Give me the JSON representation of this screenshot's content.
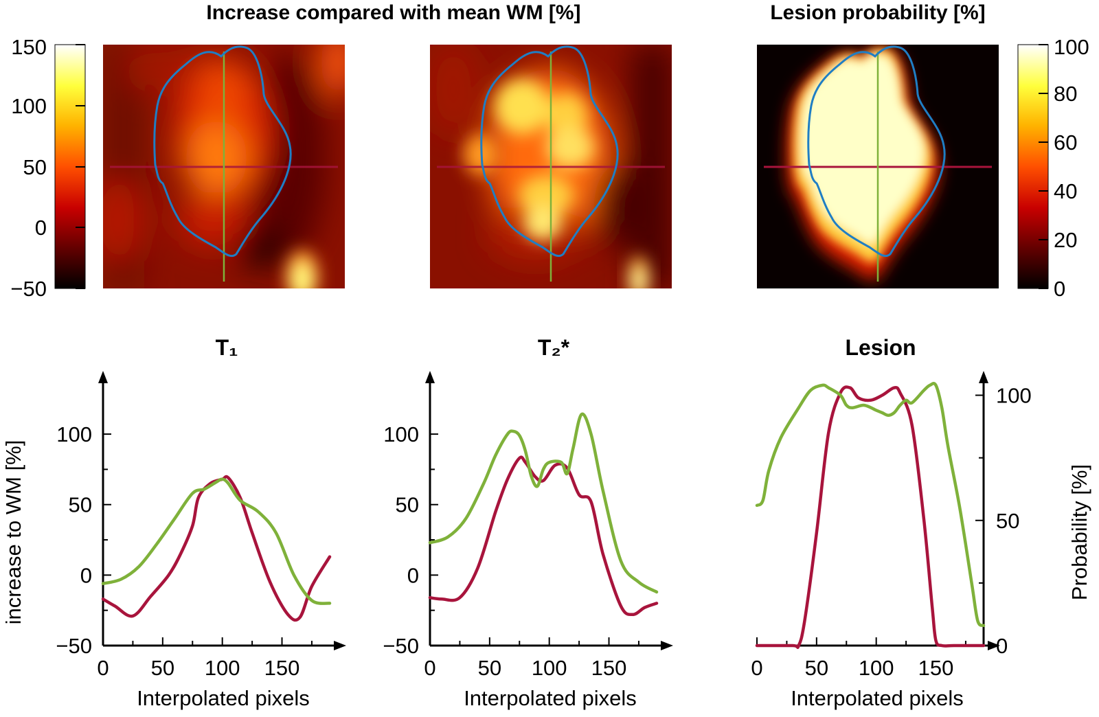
{
  "titles": {
    "top_left": "Increase compared with mean WM [%]",
    "top_right": "Lesion probability [%]"
  },
  "colors": {
    "red_line": "#a8143c",
    "green_line": "#7fb13a",
    "contour": "#1f7ec4",
    "heatmap": [
      "#000000",
      "#5a0000",
      "#c80000",
      "#ff5000",
      "#ffb400",
      "#ffff3c",
      "#ffffff"
    ]
  },
  "colorbars": {
    "left": {
      "ticks": [
        "150",
        "100",
        "50",
        "0",
        "−50"
      ]
    },
    "right": {
      "ticks": [
        "100",
        "80",
        "60",
        "40",
        "20",
        "0"
      ]
    }
  },
  "chart_data": [
    {
      "type": "line",
      "title": "T₁",
      "xlabel": "Interpolated pixels",
      "ylabel": "increase to WM [%]",
      "xlim": [
        0,
        190
      ],
      "ylim": [
        -50,
        140
      ],
      "xticks": [
        "0",
        "50",
        "100",
        "150"
      ],
      "yticks": [
        "−50",
        "0",
        "50",
        "100"
      ],
      "series": [
        {
          "color": "#a8143c",
          "x": [
            0,
            10,
            25,
            40,
            55,
            65,
            75,
            80,
            90,
            100,
            105,
            115,
            125,
            140,
            155,
            165,
            175,
            190
          ],
          "y": [
            -17,
            -22,
            -29,
            -15,
            0,
            15,
            35,
            55,
            65,
            68,
            69,
            55,
            30,
            -5,
            -28,
            -30,
            -8,
            13
          ]
        },
        {
          "color": "#7fb13a",
          "x": [
            0,
            15,
            30,
            45,
            60,
            75,
            85,
            95,
            100,
            105,
            115,
            130,
            145,
            160,
            175,
            190
          ],
          "y": [
            -6,
            -3,
            6,
            22,
            40,
            58,
            61,
            66,
            68,
            65,
            53,
            45,
            30,
            0,
            -18,
            -20
          ]
        }
      ]
    },
    {
      "type": "line",
      "title": "T₂*",
      "xlabel": "Interpolated pixels",
      "ylabel": "",
      "xlim": [
        0,
        190
      ],
      "ylim": [
        -50,
        140
      ],
      "xticks": [
        "0",
        "50",
        "100",
        "150"
      ],
      "yticks": [
        "−50",
        "0",
        "50",
        "100"
      ],
      "series": [
        {
          "color": "#a8143c",
          "x": [
            0,
            10,
            25,
            40,
            55,
            65,
            75,
            80,
            88,
            95,
            105,
            115,
            125,
            135,
            145,
            160,
            170,
            180,
            190
          ],
          "y": [
            -16,
            -17,
            -16,
            5,
            45,
            68,
            83,
            80,
            70,
            67,
            78,
            76,
            57,
            52,
            15,
            -22,
            -28,
            -23,
            -20
          ]
        },
        {
          "color": "#7fb13a",
          "x": [
            0,
            15,
            30,
            45,
            55,
            65,
            70,
            75,
            80,
            85,
            90,
            95,
            100,
            110,
            115,
            120,
            127,
            135,
            145,
            160,
            175,
            190
          ],
          "y": [
            23,
            27,
            40,
            65,
            85,
            100,
            102,
            99,
            88,
            70,
            63,
            75,
            80,
            80,
            72,
            90,
            114,
            100,
            60,
            10,
            -5,
            -12
          ]
        }
      ]
    },
    {
      "type": "line",
      "title": "Lesion",
      "xlabel": "Interpolated pixels",
      "ylabel": "Probability [%]",
      "xlim": [
        0,
        190
      ],
      "ylim": [
        0,
        107
      ],
      "xticks": [
        "0",
        "50",
        "100",
        "150"
      ],
      "yticks": [
        "0",
        "50",
        "100"
      ],
      "series": [
        {
          "color": "#a8143c",
          "x": [
            0,
            30,
            35,
            40,
            50,
            60,
            70,
            78,
            85,
            95,
            105,
            115,
            120,
            130,
            140,
            147,
            150,
            155,
            165,
            190
          ],
          "y": [
            0,
            0,
            0,
            10,
            45,
            85,
            101,
            103,
            99,
            98,
            100,
            103,
            101,
            88,
            50,
            15,
            2,
            0,
            0,
            0
          ]
        },
        {
          "color": "#7fb13a",
          "x": [
            0,
            5,
            10,
            20,
            35,
            45,
            55,
            60,
            70,
            75,
            80,
            90,
            100,
            105,
            110,
            115,
            120,
            125,
            130,
            140,
            145,
            150,
            155,
            160,
            170,
            180,
            185,
            190
          ],
          "y": [
            56,
            58,
            70,
            83,
            95,
            102,
            104,
            103,
            100,
            96,
            95,
            96,
            94,
            93,
            92,
            93,
            96,
            98,
            97,
            102,
            104,
            104,
            95,
            80,
            55,
            25,
            10,
            8
          ]
        }
      ]
    }
  ]
}
